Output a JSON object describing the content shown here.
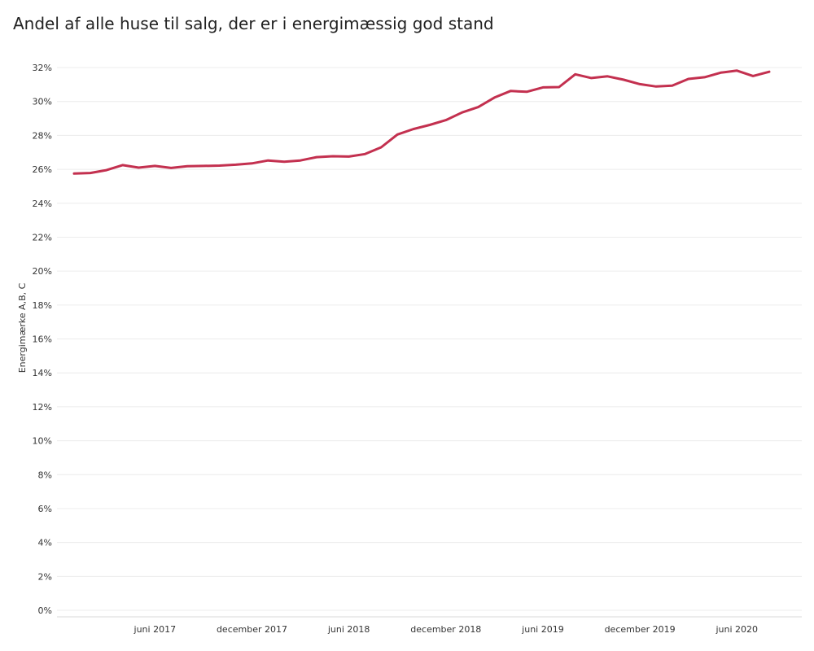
{
  "chart_data": {
    "type": "line",
    "title": "Andel af alle huse til salg, der er i energimæssig god stand",
    "xlabel": "",
    "ylabel": "Energimærke A,B, C",
    "x_ticks": [
      "juni 2017",
      "december 2017",
      "juni 2018",
      "december 2018",
      "juni 2019",
      "december 2019",
      "juni 2020"
    ],
    "x_tick_dates": [
      "2017-06",
      "2017-12",
      "2018-06",
      "2018-12",
      "2019-06",
      "2019-12",
      "2020-06"
    ],
    "y_ticks": [
      "0%",
      "2%",
      "4%",
      "6%",
      "8%",
      "10%",
      "12%",
      "14%",
      "16%",
      "18%",
      "20%",
      "22%",
      "24%",
      "26%",
      "28%",
      "30%",
      "32%"
    ],
    "ylim": [
      0,
      33
    ],
    "y_unit": "%",
    "grid": true,
    "series_color": "#c3304f",
    "x": [
      "2017-01",
      "2017-02",
      "2017-03",
      "2017-04",
      "2017-05",
      "2017-06",
      "2017-07",
      "2017-08",
      "2017-09",
      "2017-10",
      "2017-11",
      "2017-12",
      "2018-01",
      "2018-02",
      "2018-03",
      "2018-04",
      "2018-05",
      "2018-06",
      "2018-07",
      "2018-08",
      "2018-09",
      "2018-10",
      "2018-11",
      "2018-12",
      "2019-01",
      "2019-02",
      "2019-03",
      "2019-04",
      "2019-05",
      "2019-06",
      "2019-07",
      "2019-08",
      "2019-09",
      "2019-10",
      "2019-11",
      "2019-12",
      "2020-01",
      "2020-02",
      "2020-03",
      "2020-04",
      "2020-05",
      "2020-06",
      "2020-07",
      "2020-08"
    ],
    "values": [
      25.75,
      25.78,
      25.95,
      26.25,
      26.1,
      26.2,
      26.08,
      26.18,
      26.2,
      26.22,
      26.27,
      26.35,
      26.52,
      26.45,
      26.52,
      26.72,
      26.77,
      26.75,
      26.9,
      27.3,
      28.05,
      28.38,
      28.62,
      28.9,
      29.35,
      29.67,
      30.23,
      30.62,
      30.57,
      30.83,
      30.85,
      31.6,
      31.38,
      31.48,
      31.28,
      31.02,
      30.88,
      30.93,
      31.33,
      31.43,
      31.7,
      31.82,
      31.5,
      31.75
    ]
  }
}
